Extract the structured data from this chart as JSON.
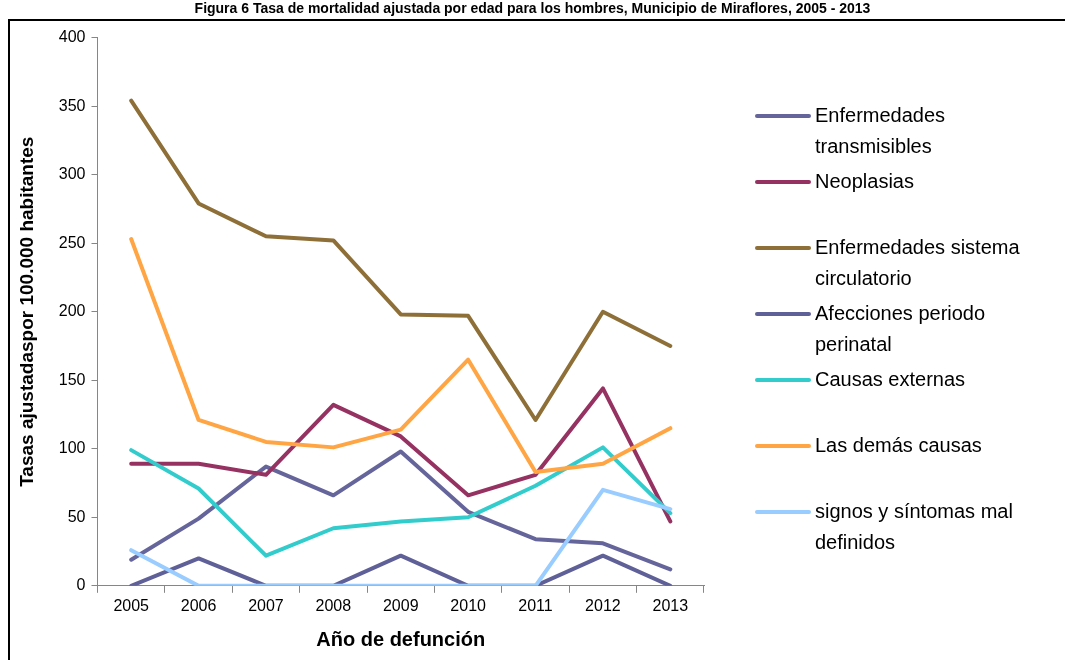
{
  "chart_data": {
    "type": "line",
    "title": "Figura 6 Tasa de mortalidad ajustada por edad para los hombres, Municipio de Miraflores, 2005 - 2013",
    "xlabel": "Año de defunción",
    "ylabel": "Tasas ajustadaspor 100.000 habitantes",
    "categories": [
      "2005",
      "2006",
      "2007",
      "2008",
      "2009",
      "2010",
      "2011",
      "2012",
      "2013"
    ],
    "series": [
      {
        "name": "Enfermedades transmisibles",
        "color": "#65659b",
        "values": [
          19,
          49,
          87,
          66,
          98,
          54,
          34,
          31,
          12
        ]
      },
      {
        "name": "Neoplasias",
        "color": "#953262",
        "values": [
          89,
          89,
          81,
          132,
          109,
          66,
          81,
          144,
          47
        ]
      },
      {
        "name": "Enfermedades sistema circulatorio",
        "color": "#8e6f38",
        "values": [
          354,
          279,
          255,
          252,
          198,
          197,
          121,
          200,
          175
        ]
      },
      {
        "name": "Afecciones periodo perinatal",
        "color": "#606098",
        "values": [
          0,
          20,
          0,
          0,
          22,
          0,
          0,
          22,
          0
        ]
      },
      {
        "name": "Causas externas",
        "color": "#33cccc",
        "values": [
          99,
          71,
          22,
          42,
          47,
          50,
          73,
          101,
          53
        ]
      },
      {
        "name": "Las demás causas",
        "color": "#ffa543",
        "values": [
          253,
          121,
          105,
          101,
          114,
          165,
          83,
          89,
          115
        ]
      },
      {
        "name": "signos y síntomas mal definidos",
        "color": "#99ccff",
        "values": [
          26,
          0,
          0,
          0,
          0,
          0,
          0,
          70,
          56
        ]
      }
    ],
    "ylim": [
      0,
      400
    ],
    "yticks": [
      0,
      50,
      100,
      150,
      200,
      250,
      300,
      350,
      400
    ],
    "legend": "right",
    "marker": "none",
    "line_style": "solid"
  }
}
